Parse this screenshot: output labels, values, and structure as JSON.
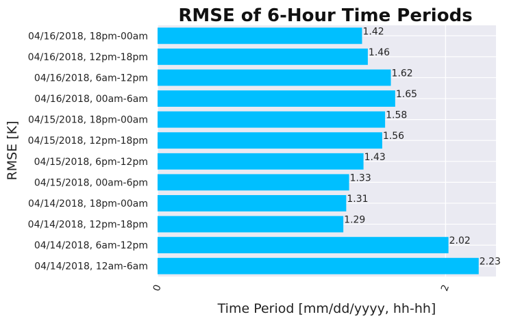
{
  "chart_data": {
    "type": "bar",
    "orientation": "horizontal",
    "title": "RMSE of 6-Hour Time Periods",
    "xlabel": "Time Period [mm/dd/yyyy, hh-hh]",
    "ylabel": "RMSE [K]",
    "categories": [
      "04/14/2018, 12am-6am",
      "04/14/2018, 6am-12pm",
      "04/14/2018, 12pm-18pm",
      "04/14/2018, 18pm-00am",
      "04/15/2018, 00am-6pm",
      "04/15/2018, 6pm-12pm",
      "04/15/2018, 12pm-18pm",
      "04/15/2018, 18pm-00am",
      "04/16/2018, 00am-6am",
      "04/16/2018, 6am-12pm",
      "04/16/2018, 12pm-18pm",
      "04/16/2018, 18pm-00am"
    ],
    "values": [
      2.23,
      2.02,
      1.29,
      1.31,
      1.33,
      1.43,
      1.56,
      1.58,
      1.65,
      1.62,
      1.46,
      1.42
    ],
    "data_labels": [
      "2.23",
      "2.02",
      "1.29",
      "1.31",
      "1.33",
      "1.43",
      "1.56",
      "1.58",
      "1.65",
      "1.62",
      "1.46",
      "1.42"
    ],
    "xlim": [
      0,
      2.35
    ],
    "xticks": [
      0,
      2
    ],
    "xtick_labels": [
      "0",
      "2"
    ],
    "grid": true,
    "legend": "none",
    "bar_color": "#00bfff",
    "background_color": "#eaeaf2",
    "grid_color": "#ffffff"
  }
}
